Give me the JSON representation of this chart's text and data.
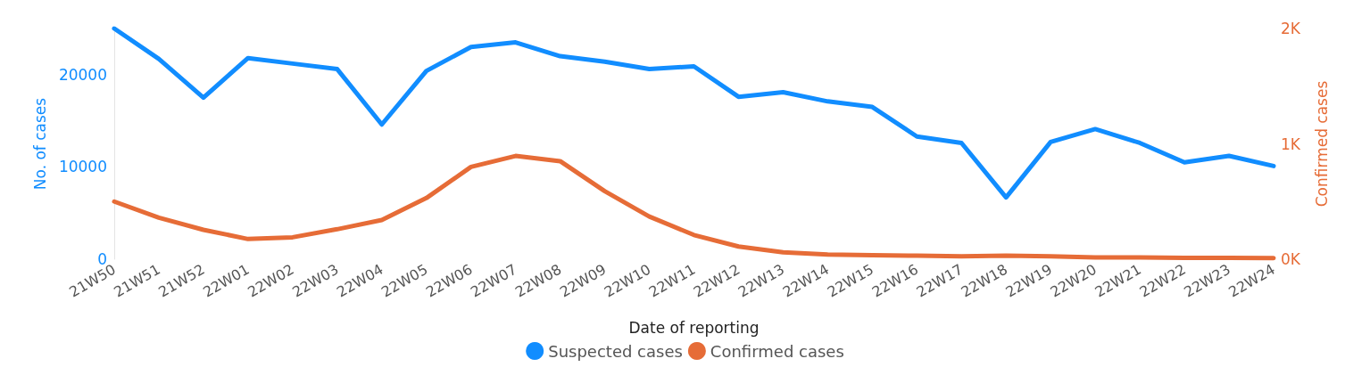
{
  "chart_data": {
    "type": "line",
    "xlabel": "Date of reporting",
    "ylabel": "No. of cases",
    "y2label": "Confirmed cases",
    "categories": [
      "21W50",
      "21W51",
      "21W52",
      "22W01",
      "22W02",
      "22W03",
      "22W04",
      "22W05",
      "22W06",
      "22W07",
      "22W08",
      "22W09",
      "22W10",
      "22W11",
      "22W12",
      "22W13",
      "22W14",
      "22W15",
      "22W16",
      "22W17",
      "22W18",
      "22W19",
      "22W20",
      "22W21",
      "22W22",
      "22W23",
      "22W24"
    ],
    "series": [
      {
        "name": "Suspected cases",
        "color": "#118dff",
        "values": [
          25000,
          21700,
          17500,
          21800,
          21200,
          20600,
          14600,
          20400,
          23000,
          23500,
          22000,
          21400,
          20600,
          20900,
          17600,
          18100,
          17100,
          16500,
          13300,
          12600,
          6700,
          12700,
          14100,
          12600,
          10500,
          11200,
          10100
        ]
      },
      {
        "name": "Confirmed cases",
        "color": "#e66c37",
        "axis": "y2",
        "values": [
          500,
          360,
          255,
          175,
          190,
          260,
          340,
          530,
          800,
          895,
          850,
          590,
          370,
          210,
          110,
          60,
          40,
          35,
          30,
          25,
          30,
          25,
          15,
          15,
          12,
          12,
          10
        ]
      }
    ],
    "ylim": [
      0,
      25000
    ],
    "yticks": [
      0,
      10000,
      20000
    ],
    "y2lim": [
      0,
      2000
    ],
    "y2ticks": [
      {
        "value": 0,
        "label": "0K"
      },
      {
        "value": 1000,
        "label": "1K"
      },
      {
        "value": 2000,
        "label": "2K"
      }
    ],
    "grid": false,
    "legend": "bottom",
    "marker": "none",
    "line_style": "solid"
  }
}
